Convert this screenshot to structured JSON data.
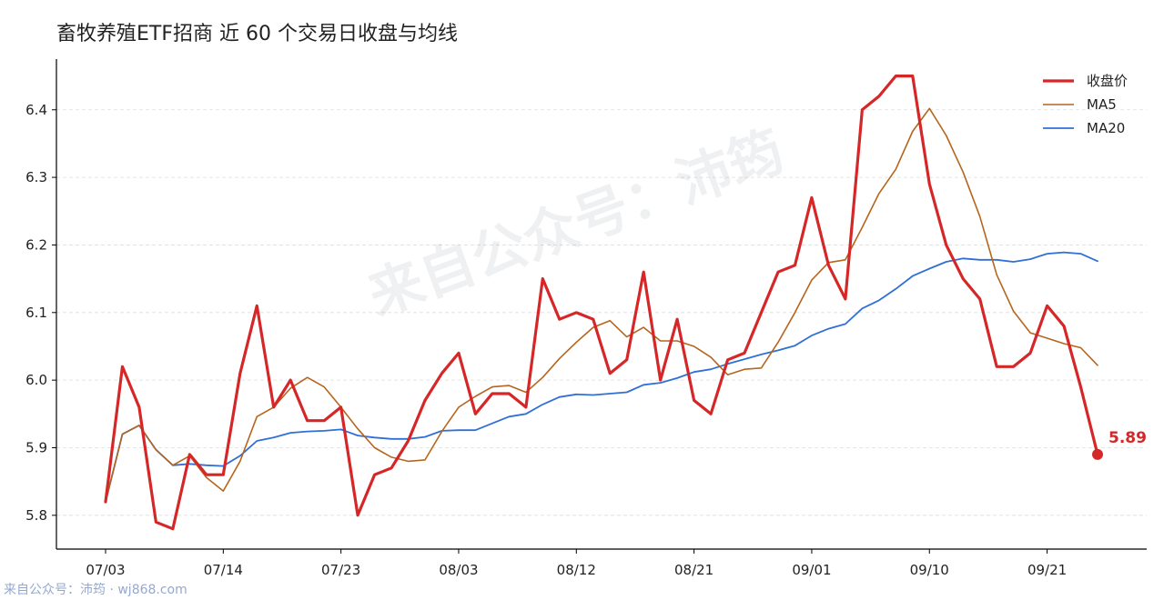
{
  "chart_data": {
    "type": "line",
    "title": "畜牧养殖ETF招商 近 60 个交易日收盘与均线",
    "xlabel": "",
    "ylabel": "",
    "ylim": [
      5.75,
      6.475
    ],
    "yticks": [
      5.8,
      5.9,
      6.0,
      6.1,
      6.2,
      6.3,
      6.4
    ],
    "ytick_labels": [
      "5.8",
      "5.9",
      "6.0",
      "6.1",
      "6.2",
      "6.3",
      "6.4"
    ],
    "xtick_labels": [
      {
        "index": 0,
        "label": "07/03"
      },
      {
        "index": 7,
        "label": "07/14"
      },
      {
        "index": 14,
        "label": "07/23"
      },
      {
        "index": 21,
        "label": "08/03"
      },
      {
        "index": 28,
        "label": "08/12"
      },
      {
        "index": 35,
        "label": "08/21"
      },
      {
        "index": 42,
        "label": "09/01"
      },
      {
        "index": 49,
        "label": "09/10"
      },
      {
        "index": 56,
        "label": "09/21"
      }
    ],
    "grid": "horizontal-dashed",
    "legend_position": "top-right",
    "series": [
      {
        "name": "收盘价",
        "color": "#d62728",
        "width": 3.2,
        "values": [
          5.82,
          6.02,
          5.96,
          5.79,
          5.78,
          5.89,
          5.86,
          5.86,
          6.01,
          6.11,
          5.96,
          6.0,
          5.94,
          5.94,
          5.96,
          5.8,
          5.86,
          5.87,
          5.91,
          5.97,
          6.01,
          6.04,
          5.95,
          5.98,
          5.98,
          5.96,
          6.15,
          6.09,
          6.1,
          6.09,
          6.01,
          6.03,
          6.16,
          6.0,
          6.09,
          5.97,
          5.95,
          6.03,
          6.04,
          6.1,
          6.16,
          6.17,
          6.27,
          6.17,
          6.12,
          6.4,
          6.42,
          6.45,
          6.45,
          6.29,
          6.2,
          6.15,
          6.12,
          6.02,
          6.02,
          6.04,
          6.11,
          6.08,
          5.99,
          5.89
        ]
      },
      {
        "name": "MA5",
        "color": "#b5651d",
        "width": 1.6,
        "values": [
          5.82,
          5.92,
          5.933,
          5.897,
          5.874,
          5.888,
          5.856,
          5.836,
          5.88,
          5.946,
          5.96,
          5.988,
          6.004,
          5.99,
          5.96,
          5.928,
          5.9,
          5.886,
          5.88,
          5.882,
          5.924,
          5.96,
          5.976,
          5.99,
          5.992,
          5.982,
          6.004,
          6.032,
          6.056,
          6.078,
          6.088,
          6.064,
          6.078,
          6.058,
          6.058,
          6.05,
          6.034,
          6.008,
          6.016,
          6.018,
          6.056,
          6.1,
          6.148,
          6.174,
          6.178,
          6.226,
          6.276,
          6.312,
          6.368,
          6.402,
          6.362,
          6.308,
          6.242,
          6.156,
          6.102,
          6.07,
          6.062,
          6.054,
          6.048,
          6.022
        ]
      },
      {
        "name": "MA20",
        "color": "#2f6fd6",
        "width": 1.8,
        "values": [
          5.82,
          5.92,
          5.933,
          5.897,
          5.874,
          5.876,
          5.874,
          5.873,
          5.888,
          5.91,
          5.915,
          5.922,
          5.924,
          5.925,
          5.927,
          5.918,
          5.915,
          5.913,
          5.913,
          5.916,
          5.925,
          5.926,
          5.926,
          5.936,
          5.946,
          5.95,
          5.964,
          5.975,
          5.979,
          5.978,
          5.98,
          5.982,
          5.993,
          5.996,
          6.003,
          6.012,
          6.016,
          6.024,
          6.031,
          6.038,
          6.044,
          6.051,
          6.066,
          6.076,
          6.083,
          6.106,
          6.118,
          6.135,
          6.154,
          6.165,
          6.175,
          6.18,
          6.178,
          6.178,
          6.175,
          6.179,
          6.187,
          6.189,
          6.187,
          6.176
        ]
      }
    ],
    "annotations": [
      {
        "text": "5.89",
        "series": "收盘价",
        "index": 59
      }
    ]
  },
  "watermarks": {
    "center": "来自公众号：沛筠",
    "bottom": "来自公众号：沛筠 · wj868.com"
  }
}
